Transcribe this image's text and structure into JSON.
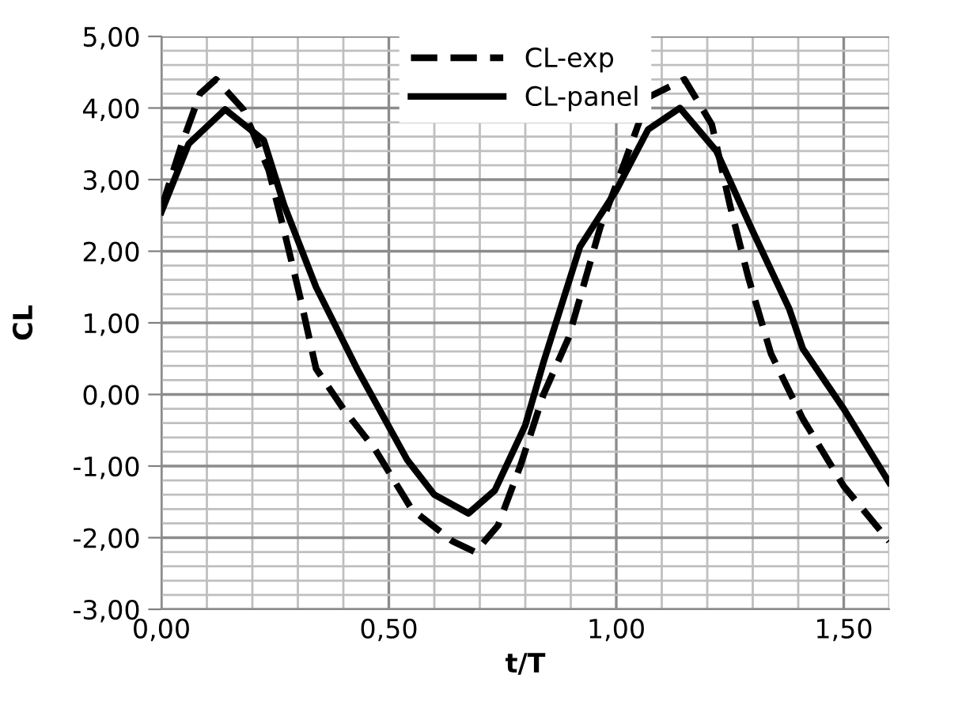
{
  "chart_data": {
    "type": "line",
    "xlabel": "t/T",
    "ylabel": "CL",
    "xlim": [
      0,
      1.6
    ],
    "ylim": [
      -3,
      5
    ],
    "xticks": [
      {
        "value": 0,
        "label": "0,00"
      },
      {
        "value": 0.5,
        "label": "0,50"
      },
      {
        "value": 1.0,
        "label": "1,00"
      },
      {
        "value": 1.5,
        "label": "1,50"
      }
    ],
    "yticks": [
      {
        "value": -3,
        "label": "-3,00"
      },
      {
        "value": -2,
        "label": "-2,00"
      },
      {
        "value": -1,
        "label": "-1,00"
      },
      {
        "value": 0,
        "label": "0,00"
      },
      {
        "value": 1,
        "label": "1,00"
      },
      {
        "value": 2,
        "label": "2,00"
      },
      {
        "value": 3,
        "label": "3,00"
      },
      {
        "value": 4,
        "label": "4,00"
      },
      {
        "value": 5,
        "label": "5,00"
      }
    ],
    "grid": true,
    "legend": "top",
    "marker": "none",
    "series": [
      {
        "name": "CL-exp",
        "color": "#000000",
        "line_style": "dashed",
        "x": [
          0,
          0.045,
          0.085,
          0.12,
          0.18,
          0.236,
          0.27,
          0.305,
          0.34,
          0.4,
          0.47,
          0.55,
          0.64,
          0.69,
          0.74,
          0.79,
          0.84,
          0.895,
          0.965,
          1.02,
          1.07,
          1.15,
          1.21,
          1.25,
          1.29,
          1.34,
          1.41,
          1.5,
          1.6
        ],
        "values": [
          2.6,
          3.5,
          4.2,
          4.4,
          3.98,
          3.13,
          2.28,
          1.36,
          0.36,
          -0.2,
          -0.77,
          -1.6,
          -2.05,
          -2.2,
          -1.83,
          -0.98,
          0.0,
          0.79,
          2.34,
          3.27,
          4.15,
          4.4,
          3.77,
          2.64,
          1.64,
          0.57,
          -0.34,
          -1.28,
          -2.05
        ]
      },
      {
        "name": "CL-panel",
        "color": "#000000",
        "line_style": "solid",
        "x": [
          0,
          0.06,
          0.14,
          0.225,
          0.27,
          0.34,
          0.43,
          0.54,
          0.6,
          0.675,
          0.733,
          0.8,
          0.84,
          0.92,
          1.0,
          1.07,
          1.14,
          1.22,
          1.3,
          1.38,
          1.41,
          1.5,
          1.6
        ],
        "values": [
          2.55,
          3.5,
          3.98,
          3.55,
          2.64,
          1.5,
          0.36,
          -0.91,
          -1.4,
          -1.66,
          -1.34,
          -0.43,
          0.45,
          2.06,
          2.85,
          3.7,
          4.0,
          3.4,
          2.28,
          1.2,
          0.64,
          -0.2,
          -1.23
        ]
      }
    ]
  }
}
